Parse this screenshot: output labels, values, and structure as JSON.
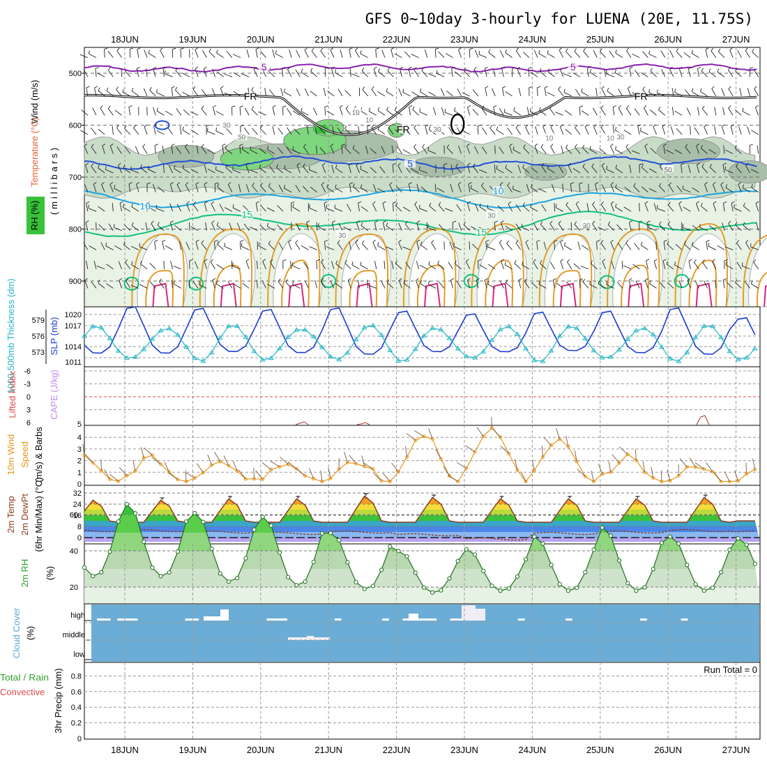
{
  "title": "GFS 0~10day 3-hourly for LUENA (20E, 11.75S)",
  "dates": [
    "18JUN",
    "19JUN",
    "20JUN",
    "21JUN",
    "22JUN",
    "23JUN",
    "24JUN",
    "25JUN",
    "26JUN",
    "27JUN"
  ],
  "colors": {
    "rh_light": "#e8f3e6",
    "rh_mid": "#c9dcc8",
    "rh_dark": "#a9bea9",
    "rh_green": "#7ed67e",
    "rh_bright": "#38c238",
    "temp_purple": "#8a1fb0",
    "temp_blue": "#1f4fd6",
    "temp_cyan": "#1ba3e0",
    "temp_teal": "#14c07c",
    "temp_orange": "#e39b2b",
    "temp_pink": "#d8267b",
    "slp": "#1a3ccf",
    "thick": "#23b6c4",
    "wind": "#e8961c",
    "cloud": "#6badd6",
    "rhline": "#2ea02e"
  },
  "panels": {
    "upper": {
      "ylabel_wind": "Wind (m/s)",
      "ylabel_temp": "Temperature (°C)",
      "ylabel_rh": "RH (%)",
      "ylabel_mb": "(millibars)",
      "yticks": [
        "500",
        "600",
        "700",
        "800",
        "900"
      ],
      "contour_labels": [
        "5",
        "5",
        "FR",
        "FR",
        "FR",
        "10",
        "10",
        "30",
        "50",
        "30",
        "10",
        "10",
        "30",
        "50",
        "5",
        "10",
        "10",
        "15",
        "15",
        "30",
        "30",
        "30"
      ]
    },
    "slp": {
      "ylabel_thick": "1000-500mb Thickness (dm)",
      "ylabel_slp": "SLP (mb)",
      "left_ticks": [
        "579",
        "576",
        "573"
      ],
      "right_ticks": [
        "1020",
        "1017",
        "1014",
        "1011"
      ]
    },
    "li": {
      "ylabel_li": "Lifted Index",
      "ylabel_cape": "CAPE (J/kg)",
      "ticks": [
        "-6",
        "-3",
        "0",
        "3",
        "6"
      ],
      "right_tick": "5"
    },
    "wind": {
      "ylabel": "10m Wind Speed (m/s) & Barbs",
      "ylabel_a": "10m Wind",
      "ylabel_b": "Speed",
      "ylabel_c": "(m/s) & Barbs",
      "ticks": [
        "4",
        "3",
        "2",
        "1",
        "0"
      ]
    },
    "temp": {
      "ylabel_a": "2m Temp",
      "ylabel_b": "2m DewPt",
      "ylabel_c": "(6hr Min/Max) (°C)",
      "ticks": [
        "32",
        "24",
        "16",
        "8",
        "0"
      ]
    },
    "rh": {
      "ylabel": "2m RH",
      "unit": "(%)",
      "ticks": [
        "60",
        "40",
        "20"
      ]
    },
    "cloud": {
      "ylabel": "Cloud Cover",
      "unit": "(%)",
      "levels": [
        "high",
        "middle",
        "low"
      ]
    },
    "precip": {
      "ylabel_a": "Total / Rain",
      "ylabel_b": "Convective",
      "ylabel_c": "3hr Precip (mm)",
      "ticks": [
        "0.8",
        "0.6",
        "0.4",
        "0.2",
        "0"
      ],
      "run_total": "Run Total = 0"
    }
  },
  "chart_data": [
    {
      "type": "line",
      "title": "2m Temp / 2m DewPt",
      "x": [
        "18JUN",
        "19JUN",
        "20JUN",
        "21JUN",
        "22JUN",
        "23JUN",
        "24JUN",
        "25JUN",
        "26JUN",
        "27JUN"
      ],
      "series": [
        {
          "name": "2m Temp max",
          "values": [
            27,
            28,
            28,
            30,
            29,
            28,
            28,
            28,
            29,
            30
          ]
        },
        {
          "name": "2m Temp min",
          "values": [
            11,
            11,
            11,
            11,
            11,
            11,
            11,
            11,
            11,
            12
          ]
        },
        {
          "name": "2m DewPt",
          "values": [
            5,
            4,
            3,
            4,
            2,
            -1,
            3,
            4,
            5,
            4
          ]
        }
      ],
      "ylim": [
        -3,
        34
      ]
    },
    {
      "type": "line",
      "title": "2m RH",
      "x": [
        "18JUN",
        "19JUN",
        "20JUN",
        "21JUN",
        "22JUN",
        "23JUN",
        "24JUN",
        "25JUN",
        "26JUN",
        "27JUN"
      ],
      "series": [
        {
          "name": "2m RH max",
          "values": [
            66,
            61,
            59,
            50,
            40,
            41,
            48,
            53,
            48,
            47
          ]
        },
        {
          "name": "2m RH min",
          "values": [
            26,
            23,
            21,
            19,
            17,
            18,
            18,
            18,
            18,
            20
          ]
        }
      ],
      "ylim": [
        8,
        70
      ]
    },
    {
      "type": "line",
      "title": "SLP (mb)",
      "x": [
        "18JUN",
        "19JUN",
        "20JUN",
        "21JUN",
        "22JUN",
        "23JUN",
        "24JUN",
        "25JUN",
        "26JUN",
        "27JUN"
      ],
      "series": [
        {
          "name": "SLP max",
          "values": [
            1020.5,
            1020.2,
            1020,
            1020.3,
            1019.7,
            1019.2,
            1019.5,
            1019.7,
            1020.3,
            1018.5
          ]
        },
        {
          "name": "SLP min",
          "values": [
            1011.7,
            1012.0,
            1011.8,
            1011.5,
            1012.0,
            1012.0,
            1012.2,
            1011.8,
            1011.5,
            1011.0
          ]
        }
      ],
      "ylim": [
        1009,
        1022
      ]
    },
    {
      "type": "line",
      "title": "10m Wind Speed (m/s)",
      "x": [
        "18JUN",
        "19JUN",
        "20JUN",
        "21JUN",
        "22JUN",
        "23JUN",
        "24JUN",
        "25JUN",
        "26JUN",
        "27JUN"
      ],
      "series": [
        {
          "name": "10m Wind Speed",
          "values": [
            2.2,
            1.9,
            1.8,
            2.0,
            4.3,
            4.6,
            3.8,
            2.3,
            1.6,
            1.2
          ]
        }
      ],
      "ylim": [
        0,
        5
      ]
    },
    {
      "type": "bar",
      "title": "3hr Precip (mm)",
      "categories": [
        "18JUN",
        "19JUN",
        "20JUN",
        "21JUN",
        "22JUN",
        "23JUN",
        "24JUN",
        "25JUN",
        "26JUN",
        "27JUN"
      ],
      "values": [
        0,
        0,
        0,
        0,
        0,
        0,
        0,
        0,
        0,
        0
      ],
      "ylim": [
        0,
        0.9
      ]
    }
  ]
}
